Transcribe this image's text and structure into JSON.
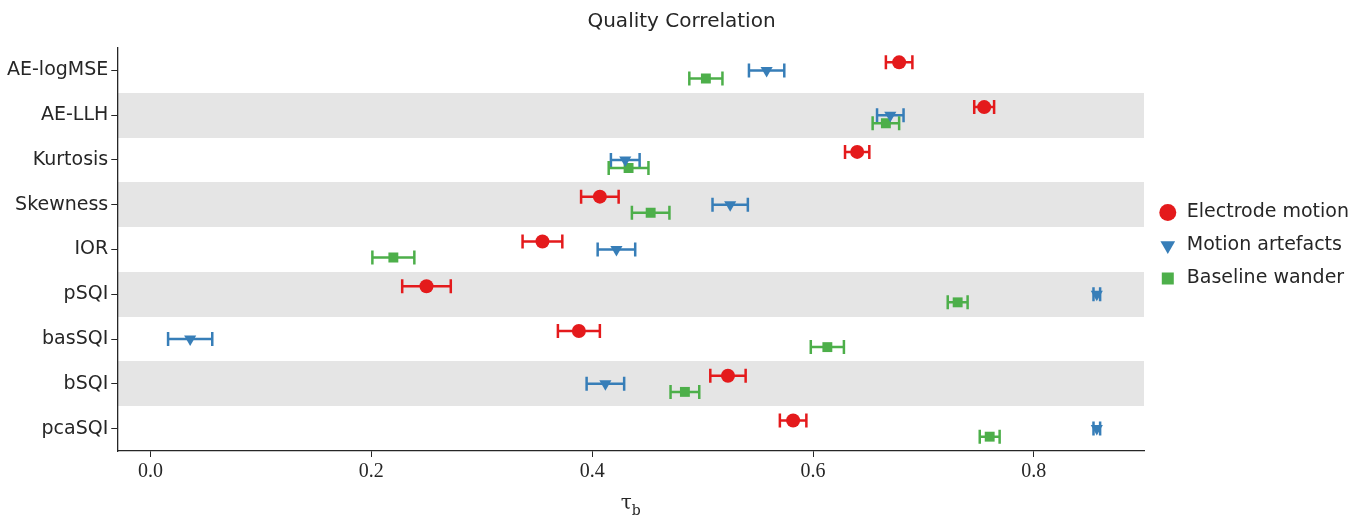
{
  "chart_data": {
    "type": "scatter",
    "orientation": "horizontal",
    "title": "Quality Correlation",
    "xlabel": "τ$_{b}$",
    "categories": [
      "AE-logMSE",
      "AE-LLH",
      "Kurtosis",
      "Skewness",
      "IOR",
      "pSQI",
      "basSQI",
      "bSQI",
      "pcaSQI"
    ],
    "xlim": [
      -0.03,
      0.9
    ],
    "xticks": [
      {
        "value": 0,
        "label": "0.0"
      },
      0.2,
      0.4,
      0.6,
      0.8
    ],
    "grid": false,
    "legend": "right",
    "series": [
      {
        "name": "Electrode motion",
        "color": "#e41a1c",
        "marker": "circle",
        "values": [
          0.678,
          0.755,
          0.64,
          0.407,
          0.355,
          0.25,
          0.388,
          0.523,
          0.582
        ],
        "errors": [
          0.012,
          0.009,
          0.011,
          0.017,
          0.018,
          0.022,
          0.019,
          0.016,
          0.012
        ]
      },
      {
        "name": "Motion artefacts",
        "color": "#377eb8",
        "marker": "triangle",
        "values": [
          0.558,
          0.67,
          0.43,
          0.525,
          0.422,
          0.857,
          0.036,
          0.412,
          0.857
        ],
        "errors": [
          0.016,
          0.012,
          0.013,
          0.016,
          0.017,
          0.003,
          0.02,
          0.017,
          0.003
        ]
      },
      {
        "name": "Baseline wander",
        "color": "#4daf4a",
        "marker": "square",
        "values": [
          0.503,
          0.666,
          0.433,
          0.453,
          0.22,
          0.731,
          0.613,
          0.484,
          0.76
        ],
        "errors": [
          0.015,
          0.012,
          0.018,
          0.017,
          0.019,
          0.009,
          0.015,
          0.013,
          0.009
        ]
      }
    ]
  }
}
